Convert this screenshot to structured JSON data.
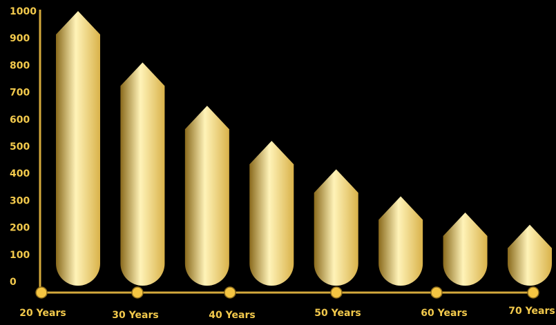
{
  "chart_data": {
    "type": "bar",
    "title": "",
    "xlabel": "",
    "ylabel": "",
    "ylim": [
      0,
      1000
    ],
    "y_ticks": [
      "0",
      "100",
      "200",
      "300",
      "400",
      "500",
      "600",
      "700",
      "800",
      "900",
      "1000"
    ],
    "x_tick_labels": [
      "20 Years",
      "30 Years",
      "40 Years",
      "50 Years",
      "60 Years",
      "70 Years"
    ],
    "categories": [
      "",
      "",
      "",
      "",
      "",
      "",
      "",
      ""
    ],
    "values": [
      1000,
      810,
      650,
      520,
      415,
      315,
      255,
      210
    ],
    "grid": false,
    "legend": "none"
  },
  "colors": {
    "background": "#000000",
    "axis": "#d4a93c",
    "tick_text": "#f2c94c",
    "gold_dark": "#8a6a1c",
    "gold_mid": "#d9b24a",
    "gold_light": "#fff3b8",
    "marker": "#f5c542"
  }
}
